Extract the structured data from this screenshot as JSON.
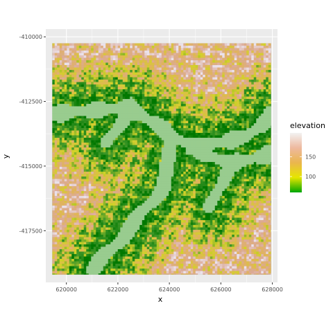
{
  "chart_data": {
    "type": "heatmap",
    "title": "",
    "xlabel": "x",
    "ylabel": "y",
    "xlim": [
      619200,
      628200
    ],
    "ylim": [
      -419500,
      -409700
    ],
    "x_ticks": [
      620000,
      622000,
      624000,
      626000,
      628000
    ],
    "x_tick_labels": [
      "620000",
      "622000",
      "624000",
      "626000",
      "628000"
    ],
    "y_ticks": [
      -410000,
      -412500,
      -415000,
      -417500
    ],
    "y_tick_labels": [
      "-410000",
      "-412500",
      "-415000",
      "-417500"
    ],
    "data_extent": {
      "x": [
        619450,
        627950
      ],
      "y": [
        -419200,
        -410250
      ]
    },
    "legend": {
      "title": "elevation",
      "placement": "right",
      "range": [
        60,
        210
      ],
      "breaks": [
        100,
        150
      ],
      "break_labels": [
        "100",
        "150"
      ],
      "colors": [
        "#00A600",
        "#E6E600",
        "#EAB64E",
        "#EEB99F",
        "#F2F2F2"
      ]
    },
    "valley_color": "#99CC8F",
    "grid": true,
    "panel_background": "#EBEBEB"
  }
}
